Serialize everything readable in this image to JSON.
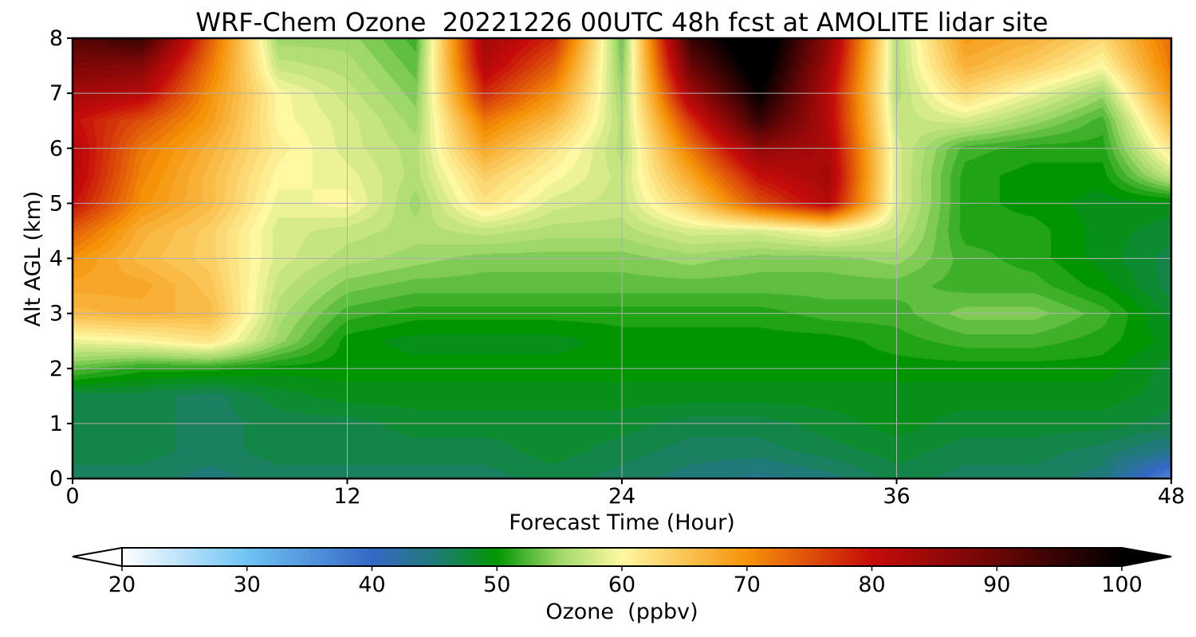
{
  "chart_data": {
    "type": "heatmap",
    "title": "WRF-Chem Ozone  20221226 00UTC 48h fcst at AMOLITE lidar site",
    "xlabel": "Forecast Time (Hour)",
    "ylabel": "Alt AGL (km)",
    "xlim": [
      0,
      48
    ],
    "ylim": [
      0,
      8
    ],
    "x_ticks": [
      "0",
      "12",
      "24",
      "36",
      "48"
    ],
    "y_ticks": [
      "0",
      "1",
      "2",
      "3",
      "4",
      "5",
      "6",
      "7",
      "8"
    ],
    "grid": true,
    "x": [
      0,
      3,
      6,
      9,
      12,
      15,
      18,
      21,
      24,
      27,
      30,
      33,
      36,
      39,
      42,
      45,
      48
    ],
    "y": [
      0,
      0.5,
      1,
      1.5,
      2,
      2.5,
      3,
      3.5,
      4,
      4.5,
      5,
      5.5,
      6,
      6.5,
      7,
      7.5,
      8
    ],
    "z_by_altitude": [
      [
        46,
        46,
        45,
        46,
        46,
        46,
        46,
        47,
        46,
        45,
        44,
        45,
        47,
        46,
        46,
        45,
        36
      ],
      [
        47,
        47,
        46,
        47,
        47,
        47,
        47,
        48,
        47,
        46,
        46,
        47,
        48,
        47,
        47,
        46,
        44
      ],
      [
        47,
        47,
        46,
        47,
        47,
        48,
        48,
        48,
        48,
        47,
        47,
        48,
        49,
        48,
        48,
        48,
        47
      ],
      [
        47,
        47,
        46,
        48,
        49,
        49,
        49,
        49,
        49,
        49,
        49,
        49,
        49,
        49,
        49,
        49,
        48
      ],
      [
        53,
        51,
        51,
        50,
        50,
        50,
        50,
        50,
        50,
        50,
        50,
        50,
        50,
        50,
        50,
        50,
        48
      ],
      [
        59,
        60,
        62,
        55,
        50,
        49,
        49,
        49,
        50,
        50,
        50,
        50,
        51,
        52,
        52,
        51,
        49
      ],
      [
        66,
        67,
        66,
        56,
        52,
        51,
        51,
        51,
        51,
        51,
        51,
        52,
        52,
        54,
        54,
        52,
        48
      ],
      [
        68,
        68,
        65,
        57,
        54,
        53,
        53,
        53,
        53,
        53,
        53,
        53,
        53,
        52,
        52,
        50,
        47
      ],
      [
        70,
        66,
        64,
        58,
        56,
        55,
        54,
        54,
        54,
        55,
        54,
        54,
        55,
        52,
        51,
        49,
        47
      ],
      [
        74,
        67,
        64,
        58,
        57,
        56,
        57,
        56,
        56,
        58,
        58,
        60,
        57,
        51,
        51,
        49,
        48
      ],
      [
        80,
        70,
        66,
        59,
        60,
        55,
        62,
        58,
        57,
        64,
        75,
        82,
        58,
        51,
        50,
        49,
        49
      ],
      [
        82,
        71,
        66,
        60,
        59,
        56,
        64,
        60,
        57,
        68,
        80,
        84,
        58,
        51,
        50,
        50,
        57
      ],
      [
        82,
        72,
        67,
        61,
        58,
        56,
        68,
        62,
        56,
        72,
        86,
        83,
        58,
        52,
        51,
        51,
        62
      ],
      [
        80,
        75,
        69,
        60,
        58,
        55,
        72,
        66,
        56,
        77,
        95,
        82,
        57,
        58,
        55,
        52,
        66
      ],
      [
        84,
        82,
        70,
        60,
        57,
        54,
        78,
        70,
        55,
        84,
        100,
        82,
        56,
        63,
        59,
        55,
        70
      ],
      [
        88,
        87,
        72,
        57,
        56,
        53,
        82,
        74,
        54,
        90,
        103,
        84,
        56,
        67,
        64,
        60,
        72
      ],
      [
        92,
        95,
        74,
        55,
        55,
        52,
        84,
        78,
        53,
        95,
        105,
        86,
        56,
        69,
        67,
        63,
        73
      ]
    ],
    "colorbar": {
      "label": "Ozone  (ppbv)",
      "min": 20,
      "max": 100,
      "extend": "both",
      "ticks": [
        "20",
        "30",
        "40",
        "50",
        "60",
        "70",
        "80",
        "90",
        "100"
      ],
      "stops": [
        [
          20,
          "#ffffff"
        ],
        [
          30,
          "#6fc3f3"
        ],
        [
          40,
          "#3568c6"
        ],
        [
          45,
          "#207a78"
        ],
        [
          50,
          "#019601"
        ],
        [
          55,
          "#9fd86a"
        ],
        [
          60,
          "#fef8a2"
        ],
        [
          70,
          "#f69208"
        ],
        [
          80,
          "#c50c0a"
        ],
        [
          90,
          "#6a0606"
        ],
        [
          100,
          "#000000"
        ]
      ]
    }
  }
}
